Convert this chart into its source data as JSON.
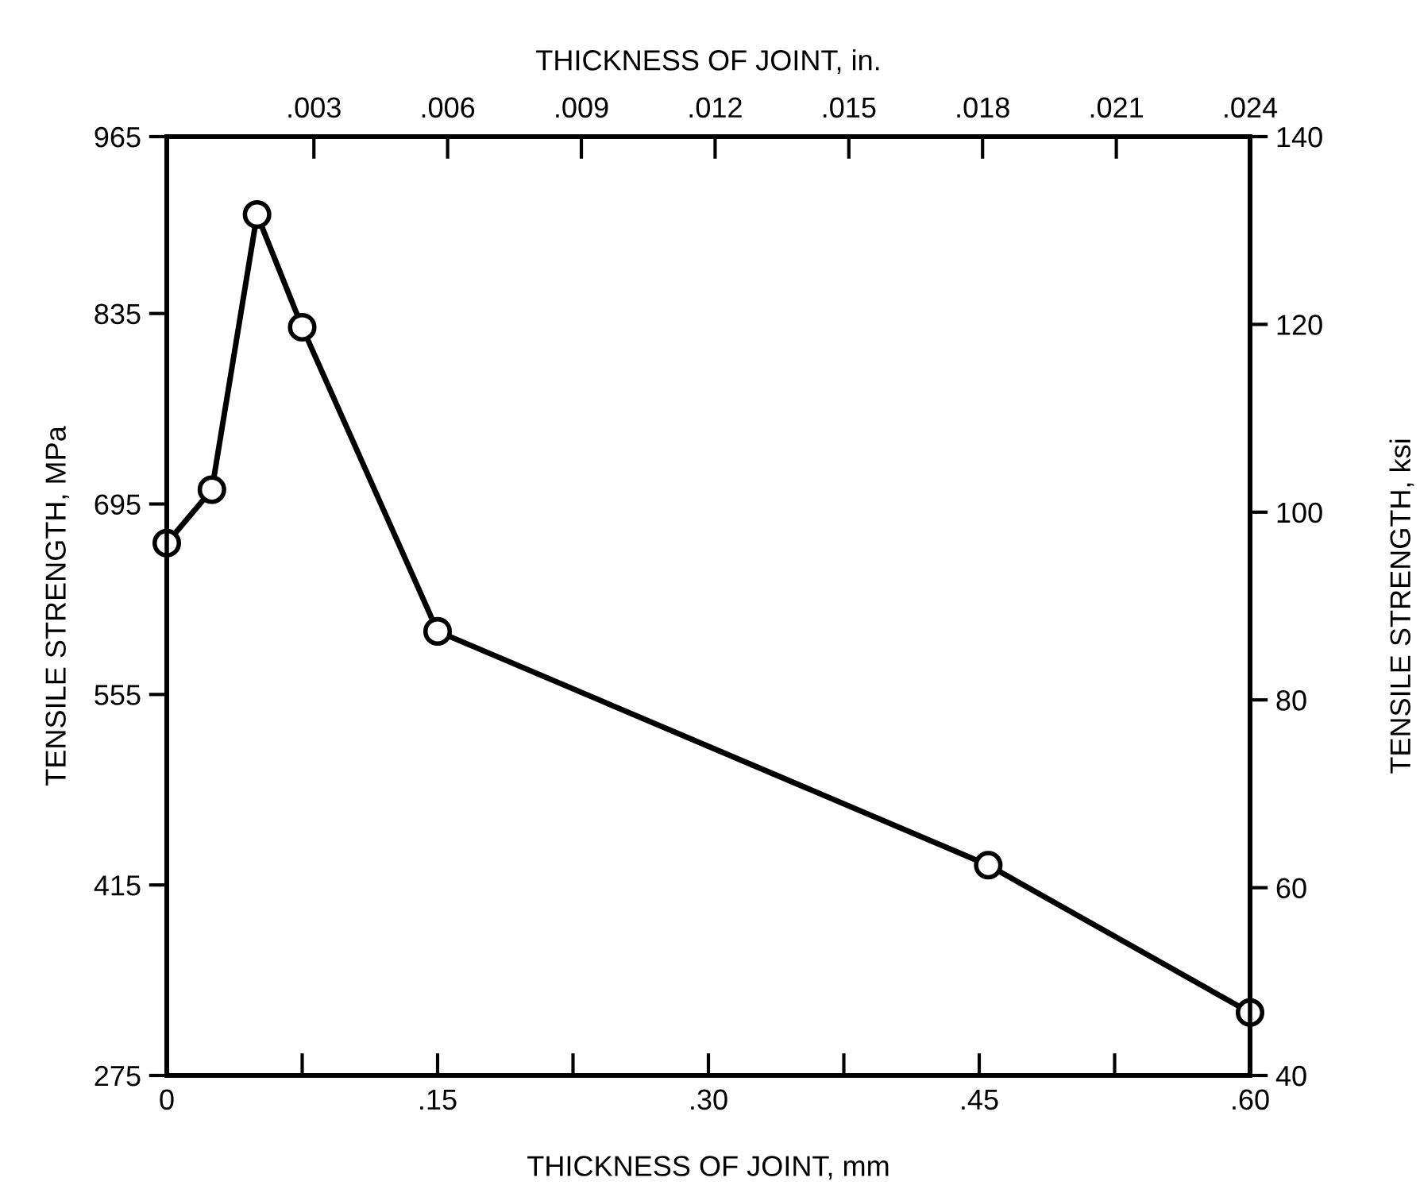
{
  "chart_data": {
    "type": "line",
    "xlabel": "THICKNESS OF JOINT, mm",
    "x2label": "THICKNESS OF JOINT, in.",
    "ylabel": "TENSILE STRENGTH, MPa",
    "y2label": "TENSILE STRENGTH, ksi",
    "x": [
      0,
      0.025,
      0.05,
      0.075,
      0.15,
      0.455,
      0.6
    ],
    "series": [
      {
        "color": "#000000",
        "axis": "y2",
        "values": [
          96.7,
          102.4,
          131.7,
          119.7,
          87.3,
          62.4,
          46.7
        ]
      }
    ],
    "marker": "circle",
    "line_style": "solid",
    "grid": false,
    "xlim": [
      0,
      0.6
    ],
    "xticks": [
      0,
      {
        "value": 0.075,
        "label": null
      },
      {
        "value": 0.15,
        "label": ".15"
      },
      {
        "value": 0.225,
        "label": null
      },
      {
        "value": 0.3,
        "label": ".30"
      },
      {
        "value": 0.375,
        "label": null
      },
      {
        "value": 0.45,
        "label": ".45"
      },
      {
        "value": 0.525,
        "label": null
      },
      {
        "value": 0.6,
        "label": ".60"
      }
    ],
    "x2lim": [
      -0.0003,
      0.024
    ],
    "x2ticks": [
      {
        "value": 0.003,
        "label": ".003"
      },
      {
        "value": 0.006,
        "label": ".006"
      },
      {
        "value": 0.009,
        "label": ".009"
      },
      {
        "value": 0.012,
        "label": ".012"
      },
      {
        "value": 0.015,
        "label": ".015"
      },
      {
        "value": 0.018,
        "label": ".018"
      },
      {
        "value": 0.021,
        "label": ".021"
      },
      {
        "value": 0.024,
        "label": ".024"
      }
    ],
    "ylim": [
      275,
      965
    ],
    "yticks": [
      275,
      415,
      555,
      695,
      835,
      965
    ],
    "y2lim": [
      40,
      140
    ],
    "y2ticks": [
      40,
      60,
      80,
      100,
      120,
      140
    ]
  }
}
